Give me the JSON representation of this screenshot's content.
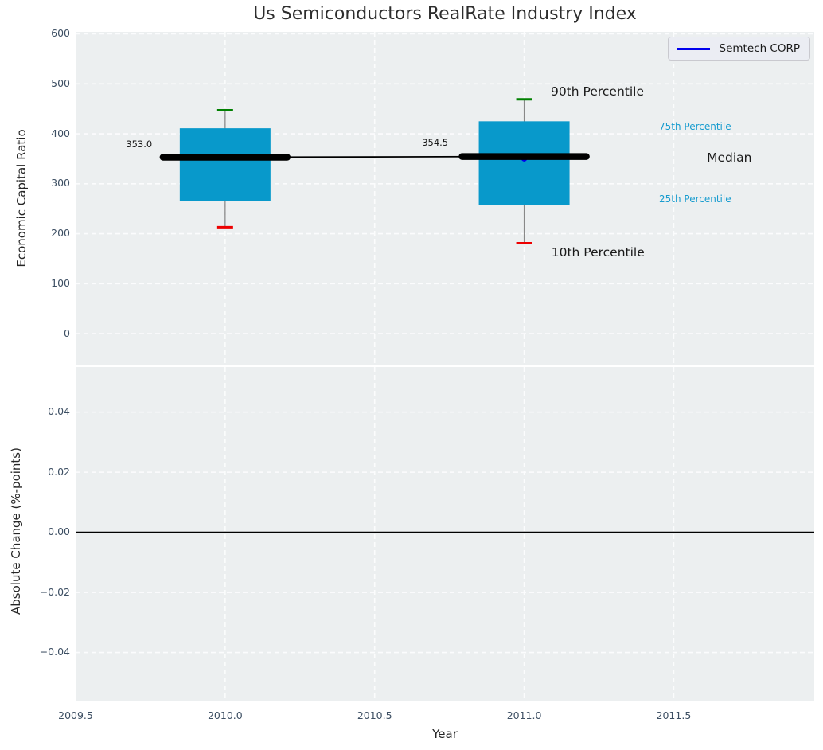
{
  "chart_data": {
    "type": "boxplot-timeseries",
    "title": "Us Semiconductors RealRate Industry Index",
    "xlabel": "Year",
    "xlim": [
      2009.5,
      2011.97
    ],
    "xticks": [
      2009.5,
      2010.0,
      2010.5,
      2011.0,
      2011.5
    ],
    "xtick_labels": [
      "2009.5",
      "2010.0",
      "2010.5",
      "2011.0",
      "2011.5"
    ],
    "legend": {
      "label": "Semtech CORP"
    },
    "colors": {
      "box_fill": "#0899cb",
      "whisker": "#888888",
      "cap_top": "#008000",
      "cap_bottom": "#ed0000",
      "median_line": "#000000",
      "series_line": "#0000ee",
      "grid": "#fbfcfd",
      "zero_line": "#000000",
      "annotation_cyan": "#189ccf",
      "annotation_black": "#1a1a1a",
      "axes_bg": "#eceff0",
      "tick_text": "#3d4f63"
    },
    "subplots": [
      {
        "ylabel": "Economic Capital Ratio",
        "ylim": [
          -62,
          604
        ],
        "yticks": [
          600,
          500,
          400,
          300,
          200,
          100,
          0
        ],
        "ytick_labels": [
          "600",
          "500",
          "400",
          "300",
          "200",
          "100",
          "0"
        ],
        "grid": true,
        "boxes": [
          {
            "year": 2010.0,
            "p10": 213,
            "p25": 266,
            "median": 353.0,
            "p75": 411,
            "p90": 447,
            "median_label": "353.0"
          },
          {
            "year": 2011.0,
            "p10": 181,
            "p25": 258,
            "median": 354.5,
            "p75": 425,
            "p90": 469,
            "median_label": "354.5"
          }
        ],
        "series": [
          {
            "name": "Semtech CORP",
            "points": [
              {
                "year": 2011.0,
                "value": 352.5
              }
            ]
          }
        ],
        "annotations": [
          {
            "text": "353.0",
            "year": 2009.756,
            "value": 379,
            "ha": "right",
            "style": "small"
          },
          {
            "text": "354.5",
            "year": 2010.746,
            "value": 382,
            "ha": "right",
            "style": "small"
          },
          {
            "text": "90th Percentile",
            "year": 2011.089,
            "value": 484,
            "ha": "left",
            "style": "large"
          },
          {
            "text": "10th Percentile",
            "year": 2011.091,
            "value": 163,
            "ha": "left",
            "style": "large"
          },
          {
            "text": "75th Percentile",
            "year": 2011.451,
            "value": 414,
            "ha": "left",
            "style": "cyan"
          },
          {
            "text": "25th Percentile",
            "year": 2011.451,
            "value": 269,
            "ha": "left",
            "style": "cyan"
          },
          {
            "text": "Median",
            "year": 2011.611,
            "value": 352,
            "ha": "left",
            "style": "large"
          }
        ]
      },
      {
        "ylabel": "Absolute Change (%-points)",
        "ylim": [
          -0.056,
          0.055
        ],
        "yticks": [
          0.04,
          0.02,
          0.0,
          -0.02,
          -0.04
        ],
        "ytick_labels": [
          "0.04",
          "0.02",
          "0.00",
          "−0.02",
          "−0.04"
        ],
        "grid": true,
        "zero_line": 0.0
      }
    ]
  }
}
